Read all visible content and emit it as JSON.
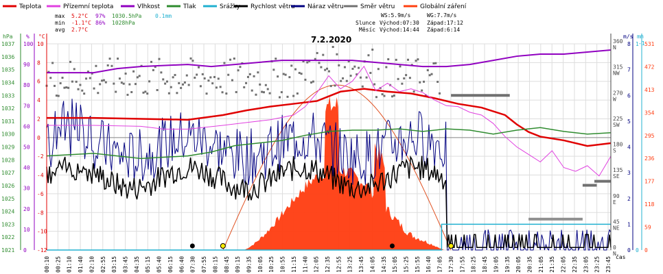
{
  "legend": [
    {
      "label": "Teplota",
      "color": "#e00000"
    },
    {
      "label": "Přízemní teplota",
      "color": "#e040e0"
    },
    {
      "label": "Vlhkost",
      "color": "#9000c0"
    },
    {
      "label": "Tlak",
      "color": "#2e8b2e"
    },
    {
      "label": "Srážky",
      "color": "#20b0d0"
    },
    {
      "label": "Rychlost větru",
      "color": "#000000"
    },
    {
      "label": "Náraz větru",
      "color": "#000080"
    },
    {
      "label": "Směr větru",
      "color": "#707070"
    },
    {
      "label": "Globální záření",
      "color": "#ff4010"
    }
  ],
  "stats": {
    "max_label": "max",
    "max_temp": "5.2°C",
    "max_hum": "97%",
    "max_press": "1030.5hPa",
    "max_rain": "0.1mm",
    "min_label": "min",
    "min_temp": "-1.1°C",
    "min_hum": "86%",
    "min_press": "1028hPa",
    "avg_label": "avg",
    "avg_temp": "2.7°C"
  },
  "wind_info": {
    "ws": "WS:5.9m/s",
    "wg": "WG:7.7m/s"
  },
  "sun_info": {
    "label": "Slunce",
    "rise": "Východ:07:30",
    "set": "Západ:17:12"
  },
  "moon_info": {
    "label": "Měsíc",
    "rise": "Východ:14:44",
    "set": "Západ:6:14"
  },
  "date_title": "7.2.2020",
  "x_axis_label": "čas",
  "axes_units": {
    "hpa": "hPa",
    "pct": "%",
    "degc": "°C",
    "ms": "m/s",
    "mm": "mm"
  },
  "axes": {
    "hpa": [
      "1021",
      "1022",
      "1023",
      "1024",
      "1025",
      "1026",
      "1027",
      "1028",
      "1029",
      "1030",
      "1031",
      "1032",
      "1033",
      "1034",
      "1035",
      "1036",
      "1037"
    ],
    "pct": [
      "0",
      "10",
      "20",
      "30",
      "40",
      "50",
      "60",
      "70",
      "80",
      "90",
      "100"
    ],
    "degc": [
      "-12",
      "-10",
      "-8",
      "-6",
      "-4",
      "-2",
      "0",
      "2",
      "4",
      "6",
      "8",
      "10"
    ],
    "dir_deg": [
      "0",
      "45",
      "90",
      "135",
      "180",
      "225",
      "270",
      "315",
      "360"
    ],
    "dir_name": [
      "N",
      "NE",
      "E",
      "SE",
      "S",
      "SW",
      "W",
      "NW",
      "N"
    ],
    "ms": [
      "0",
      "1",
      "2",
      "3",
      "4",
      "5",
      "6",
      "7",
      "8"
    ],
    "mm": [
      "0",
      "1"
    ],
    "rad": [
      "0",
      "59",
      "118",
      "177",
      "236",
      "295",
      "354",
      "413",
      "472",
      "531"
    ]
  },
  "chart_data": {
    "type": "line",
    "title": "7.2.2020",
    "x_ticks": [
      "00:10",
      "00:25",
      "01:10",
      "01:40",
      "02:10",
      "02:55",
      "03:15",
      "03:45",
      "04:35",
      "05:15",
      "05:40",
      "06:15",
      "06:40",
      "07:30",
      "07:55",
      "08:15",
      "08:45",
      "09:15",
      "09:35",
      "10:05",
      "10:25",
      "10:55",
      "11:15",
      "11:40",
      "12:05",
      "12:35",
      "12:55",
      "13:25",
      "13:45",
      "14:05",
      "14:35",
      "15:05",
      "15:25",
      "15:55",
      "16:40",
      "17:05",
      "17:30",
      "17:55",
      "18:25",
      "18:45",
      "19:05",
      "19:35",
      "20:05",
      "20:35",
      "21:05",
      "21:35",
      "22:05",
      "22:35",
      "23:05",
      "23:25",
      "23:45"
    ],
    "series": [
      {
        "name": "Teplota",
        "unit": "°C",
        "x": [
          0,
          2,
          4,
          6,
          7.5,
          8.5,
          9.5,
          10.5,
          11.5,
          12.5,
          13.5,
          14.5,
          15.5,
          16.5,
          17.5,
          18.5,
          19.5,
          20,
          20.5,
          21,
          22,
          23,
          24
        ],
        "y": [
          2.1,
          2.1,
          2.0,
          1.9,
          2.4,
          2.9,
          3.3,
          3.6,
          3.9,
          4.9,
          5.2,
          4.9,
          4.7,
          4.2,
          3.6,
          3.2,
          2.4,
          1.4,
          0.6,
          0.1,
          -0.3,
          -0.9,
          -0.6
        ]
      },
      {
        "name": "Přízemní teplota",
        "unit": "°C",
        "x": [
          0,
          2,
          4,
          5,
          6,
          7.5,
          8.5,
          9.5,
          10.5,
          11,
          11.5,
          12,
          12.5,
          13,
          13.5,
          14,
          14.5,
          15,
          15.5,
          16,
          16.5,
          17,
          17.5,
          18,
          18.5,
          19,
          19.5,
          20,
          20.5,
          21,
          21.5,
          22,
          22.5,
          23,
          23.5,
          24
        ],
        "y": [
          1.3,
          1.3,
          1.2,
          0.9,
          0.9,
          1.3,
          1.6,
          1.9,
          2.4,
          3.3,
          4.8,
          6.6,
          5.2,
          6.0,
          7.6,
          5.0,
          5.8,
          4.9,
          5.2,
          4.8,
          4.0,
          3.4,
          3.3,
          2.7,
          2.4,
          1.5,
          0.1,
          -1.0,
          -1.8,
          -2.6,
          -1.4,
          -3.2,
          -3.6,
          -3.0,
          -4.1,
          -2.0
        ]
      },
      {
        "name": "Vlhkost",
        "unit": "%",
        "x": [
          0,
          2,
          3,
          4,
          6,
          7,
          8,
          9,
          10,
          11,
          12,
          13,
          14,
          15,
          16,
          17,
          18,
          19,
          20,
          21,
          22,
          23,
          24
        ],
        "y": [
          86,
          86,
          88,
          89,
          90,
          89,
          90,
          91,
          92,
          92,
          92,
          92,
          91,
          90,
          89,
          89,
          90,
          92,
          94,
          95,
          95,
          96,
          97
        ]
      },
      {
        "name": "Tlak",
        "unit": "hPa",
        "x": [
          0,
          2,
          4,
          6,
          7,
          8,
          9,
          10,
          11,
          12,
          13,
          14,
          15,
          16,
          17,
          18,
          19,
          20,
          21,
          22,
          23,
          24
        ],
        "y": [
          1028.3,
          1028.5,
          1028.1,
          1028.3,
          1028.6,
          1029.1,
          1029.3,
          1029.5,
          1029.9,
          1030.2,
          1030.3,
          1030.3,
          1030.4,
          1030.2,
          1030.4,
          1030.3,
          1030.0,
          1030.3,
          1030.5,
          1030.2,
          1030.0,
          1030.1
        ]
      },
      {
        "name": "Srážky",
        "unit": "mm",
        "x": [
          0,
          16.8,
          16.8,
          24
        ],
        "y": [
          0,
          0,
          0.1,
          0.1
        ]
      }
    ]
  }
}
